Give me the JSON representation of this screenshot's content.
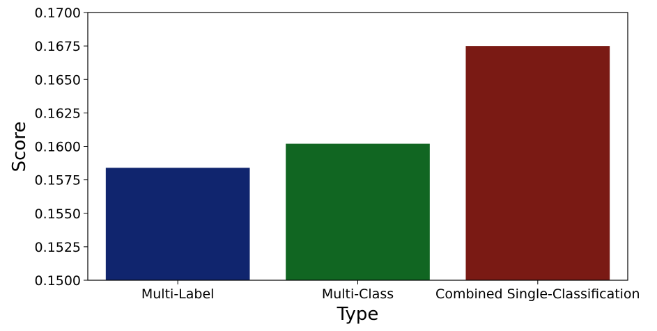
{
  "chart_data": {
    "type": "bar",
    "title": "",
    "xlabel": "Type",
    "ylabel": "Score",
    "categories": [
      "Multi-Label",
      "Multi-Class",
      "Combined Single-Classification"
    ],
    "values": [
      0.1584,
      0.1602,
      0.1675
    ],
    "colors": [
      "#10256e",
      "#116622",
      "#7a1a14"
    ],
    "ylim": [
      0.15,
      0.17
    ],
    "yticks": [
      "0.1500",
      "0.1525",
      "0.1550",
      "0.1575",
      "0.1600",
      "0.1625",
      "0.1650",
      "0.1675",
      "0.1700"
    ],
    "grid": false,
    "legend": "none"
  }
}
